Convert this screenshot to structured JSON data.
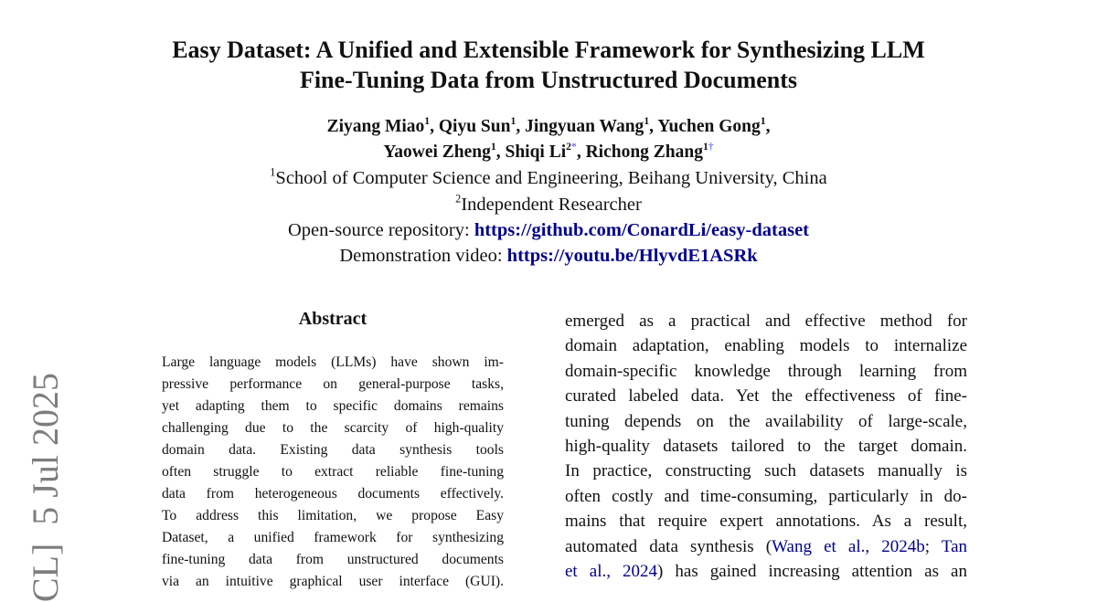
{
  "title_lines": [
    "Easy Dataset: A Unified and Extensible Framework for Synthesizing LLM",
    "Fine-Tuning Data from Unstructured Documents"
  ],
  "authors": [
    {
      "name": "Ziyang Miao",
      "aff": "1"
    },
    {
      "name": "Qiyu Sun",
      "aff": "1"
    },
    {
      "name": "Jingyuan Wang",
      "aff": "1"
    },
    {
      "name": "Yuchen Gong",
      "aff": "1"
    },
    {
      "name": "Yaowei Zheng",
      "aff": "1"
    },
    {
      "name": "Shiqi Li",
      "aff": "2",
      "mark": "*"
    },
    {
      "name": "Richong Zhang",
      "aff": "1",
      "mark": "†"
    }
  ],
  "affiliations": [
    {
      "num": "1",
      "text": "School of Computer Science and Engineering, Beihang University, China"
    },
    {
      "num": "2",
      "text": "Independent Researcher"
    }
  ],
  "repo": {
    "label": "Open-source repository:",
    "url": "https://github.com/ConardLi/easy-dataset"
  },
  "video": {
    "label": "Demonstration video:",
    "url": "https://youtu.be/HlyvdE1ASRk"
  },
  "abstract_heading": "Abstract",
  "abstract_lines": [
    "Large language models (LLMs) have shown im-",
    "pressive performance on general-purpose tasks,",
    "yet adapting them to specific domains remains",
    "challenging due to the scarcity of high-quality",
    "domain data.  Existing data synthesis tools",
    "often struggle to extract reliable fine-tuning",
    "data from heterogeneous documents effectively.",
    "To address this limitation, we propose Easy",
    "Dataset, a unified framework for synthesizing",
    "fine-tuning data from unstructured documents",
    "via an intuitive graphical user interface (GUI)."
  ],
  "right_lines": [
    "emerged as a practical and effective method for",
    "domain adaptation, enabling models to internalize",
    "domain-specific knowledge through learning from",
    "curated labeled data. Yet the effectiveness of fine-",
    "tuning depends on the availability of large-scale,",
    "high-quality datasets tailored to the target domain.",
    "In practice, constructing such datasets manually is",
    "often costly and time-consuming, particularly in do-",
    "mains that require expert annotations. As a result,"
  ],
  "citation_line": {
    "pre": "automated data synthesis (",
    "cite1": "Wang et al., 2024b",
    "sep": "; ",
    "cite2a": "Tan"
  },
  "citation_line2": {
    "cite2b": "et al., 2024",
    "post": ") has gained increasing attention as an"
  },
  "arxiv_stamp": "CL]  5 Jul 2025"
}
